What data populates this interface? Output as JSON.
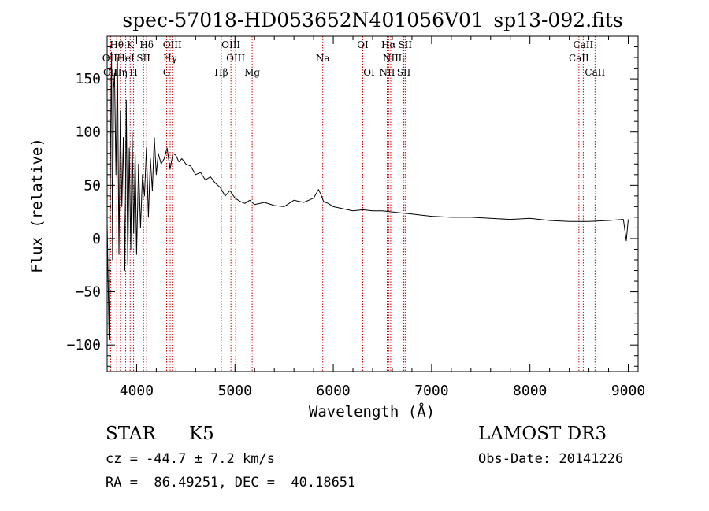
{
  "chart_data": {
    "type": "line",
    "title": "spec-57018-HD053652N401056V01_sp13-092.fits",
    "xlabel": "Wavelength (Å)",
    "ylabel": "Flux (relative)",
    "xlim": [
      3700,
      9100
    ],
    "ylim": [
      -125,
      190
    ],
    "xticks": [
      4000,
      5000,
      6000,
      7000,
      8000,
      9000
    ],
    "yticks": [
      -100,
      -50,
      0,
      50,
      100,
      150
    ],
    "series": [
      {
        "name": "flux",
        "x": [
          3700,
          3720,
          3735,
          3745,
          3755,
          3765,
          3775,
          3790,
          3805,
          3820,
          3835,
          3850,
          3865,
          3880,
          3895,
          3910,
          3925,
          3940,
          3955,
          3970,
          3985,
          4000,
          4020,
          4040,
          4060,
          4080,
          4100,
          4120,
          4140,
          4160,
          4180,
          4200,
          4220,
          4250,
          4280,
          4310,
          4340,
          4370,
          4400,
          4430,
          4460,
          4500,
          4550,
          4600,
          4650,
          4700,
          4750,
          4800,
          4850,
          4900,
          4950,
          5000,
          5050,
          5100,
          5150,
          5200,
          5300,
          5400,
          5500,
          5600,
          5700,
          5800,
          5850,
          5880,
          5900,
          5920,
          5950,
          6000,
          6100,
          6200,
          6300,
          6400,
          6500,
          6600,
          6700,
          6800,
          6900,
          7000,
          7200,
          7400,
          7600,
          7800,
          8000,
          8200,
          8400,
          8600,
          8800,
          8950,
          8980,
          9000
        ],
        "y": [
          15,
          -95,
          90,
          175,
          -20,
          140,
          155,
          60,
          170,
          -15,
          120,
          30,
          95,
          -30,
          130,
          -25,
          85,
          -10,
          100,
          5,
          80,
          -15,
          70,
          10,
          60,
          40,
          85,
          20,
          75,
          45,
          95,
          60,
          80,
          70,
          75,
          85,
          65,
          80,
          78,
          72,
          75,
          70,
          68,
          60,
          62,
          55,
          58,
          52,
          48,
          40,
          45,
          38,
          35,
          33,
          36,
          32,
          34,
          31,
          30,
          36,
          34,
          38,
          46,
          40,
          35,
          34,
          33,
          30,
          28,
          26,
          27,
          26,
          26,
          25,
          24,
          23,
          22,
          21,
          20,
          20,
          19,
          18,
          19,
          17,
          16,
          16,
          17,
          18,
          -2,
          18
        ]
      }
    ],
    "line_annotations": [
      {
        "label": "Hθ",
        "x": 3798,
        "row": 0
      },
      {
        "label": "K",
        "x": 3934,
        "row": 0
      },
      {
        "label": "Hδ",
        "x": 4102,
        "row": 0
      },
      {
        "label": "OIII",
        "x": 4363,
        "row": 0
      },
      {
        "label": "OIII",
        "x": 4959,
        "row": 0
      },
      {
        "label": "OI",
        "x": 6300,
        "row": 0
      },
      {
        "label": "Hα",
        "x": 6563,
        "row": 0
      },
      {
        "label": "SII",
        "x": 6731,
        "row": 0
      },
      {
        "label": "CaII",
        "x": 8542,
        "row": 0
      },
      {
        "label": "OII",
        "x": 3727,
        "row": 1
      },
      {
        "label": "HeI",
        "x": 3889,
        "row": 1
      },
      {
        "label": "SII",
        "x": 4070,
        "row": 1
      },
      {
        "label": "Hγ",
        "x": 4341,
        "row": 1
      },
      {
        "label": "OIII",
        "x": 5007,
        "row": 1
      },
      {
        "label": "Na",
        "x": 5893,
        "row": 1
      },
      {
        "label": "NII",
        "x": 6584,
        "row": 1
      },
      {
        "label": "Li",
        "x": 6708,
        "row": 1
      },
      {
        "label": "CaII",
        "x": 8498,
        "row": 1
      },
      {
        "label": "OII",
        "x": 3737,
        "row": 2
      },
      {
        "label": "Hη",
        "x": 3835,
        "row": 2
      },
      {
        "label": "H",
        "x": 3969,
        "row": 2
      },
      {
        "label": "G",
        "x": 4305,
        "row": 2
      },
      {
        "label": "Hβ",
        "x": 4861,
        "row": 2
      },
      {
        "label": "Mg",
        "x": 5175,
        "row": 2
      },
      {
        "label": "OI",
        "x": 6364,
        "row": 2
      },
      {
        "label": "NII",
        "x": 6548,
        "row": 2
      },
      {
        "label": "SII",
        "x": 6717,
        "row": 2
      },
      {
        "label": "CaII",
        "x": 8662,
        "row": 2
      }
    ],
    "line_marker_wavelengths": [
      3727,
      3737,
      3798,
      3835,
      3889,
      3934,
      3969,
      4070,
      4102,
      4305,
      4341,
      4363,
      4861,
      4959,
      5007,
      5175,
      5893,
      6300,
      6364,
      6548,
      6563,
      6584,
      6708,
      6717,
      6731,
      8498,
      8542,
      8662
    ],
    "line_color": "#000000",
    "marker_color": "#cc0000"
  },
  "footer": {
    "object_class": "STAR",
    "subclass": "K5",
    "survey": "LAMOST DR3",
    "redshift": "cz = -44.7 ± 7.2 km/s",
    "obs_date": "Obs-Date: 20141226",
    "coords": "RA =  86.49251, DEC =  40.18651"
  }
}
